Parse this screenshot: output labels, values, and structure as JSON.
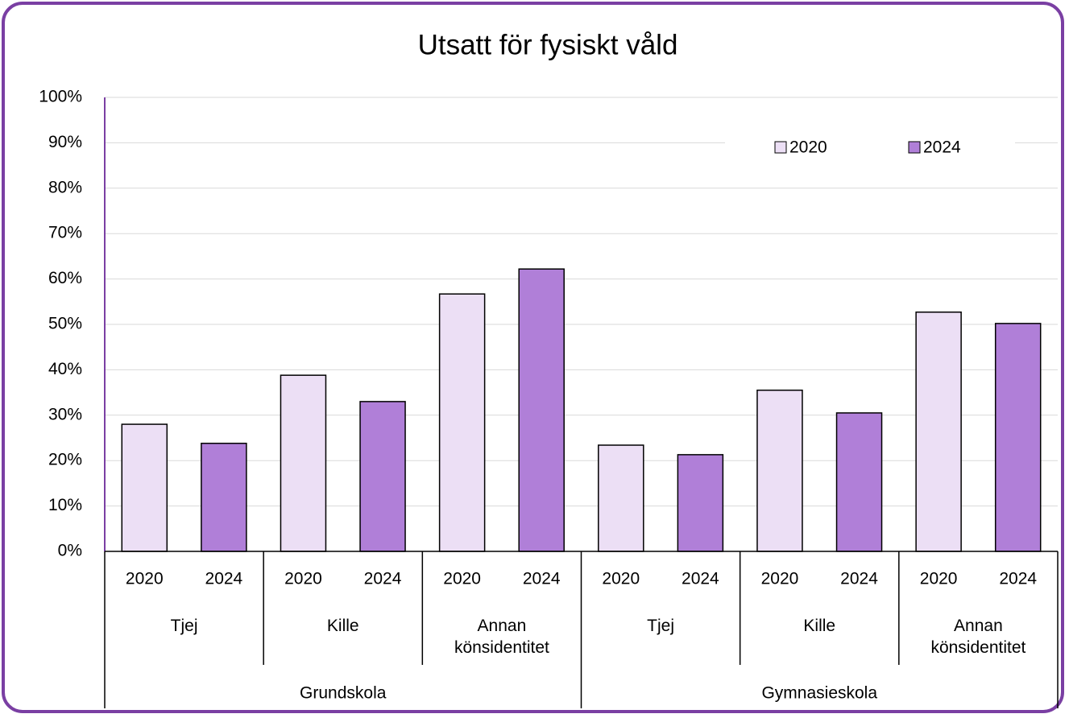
{
  "chart_data": {
    "type": "bar",
    "title": "Utsatt för fysiskt våld",
    "categories": [
      "Tjej",
      "Kille",
      "Annan könsidentitet",
      "Tjej",
      "Kille",
      "Annan könsidentitet"
    ],
    "groups": [
      "Grundskola",
      "Gymnasieskola"
    ],
    "series": [
      {
        "name": "2020",
        "color": "#ecdff5",
        "values": [
          28.0,
          38.8,
          56.7,
          23.4,
          35.5,
          52.7
        ]
      },
      {
        "name": "2024",
        "color": "#b07fd8",
        "values": [
          23.8,
          33.0,
          62.2,
          21.3,
          30.5,
          50.2
        ]
      }
    ],
    "ylim": [
      0,
      100
    ],
    "yticks": [
      {
        "value": 0,
        "label": "0%"
      },
      {
        "value": 10,
        "label": "10%"
      },
      {
        "value": 20,
        "label": "20%"
      },
      {
        "value": 30,
        "label": "30%"
      },
      {
        "value": 40,
        "label": "40%"
      },
      {
        "value": 50,
        "label": "50%"
      },
      {
        "value": 60,
        "label": "60%"
      },
      {
        "value": 70,
        "label": "70%"
      },
      {
        "value": 80,
        "label": "80%"
      },
      {
        "value": 90,
        "label": "90%"
      },
      {
        "value": 100,
        "label": "100%"
      }
    ],
    "grid": true,
    "legend": "top-right"
  }
}
